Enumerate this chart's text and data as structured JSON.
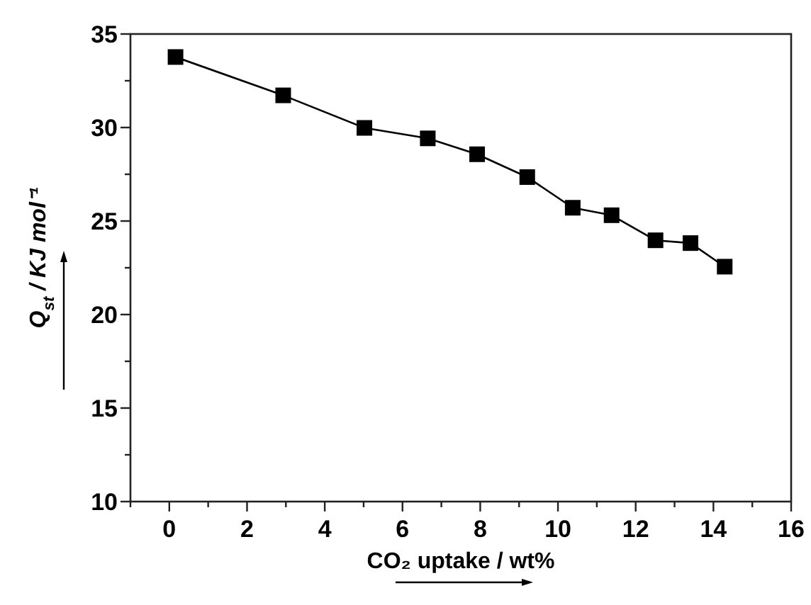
{
  "chart_data": {
    "type": "line",
    "xlabel": "CO₂ uptake / wt%",
    "ylabel": "Q$_{st}$ / KJ mol⁻¹",
    "x": [
      0.16,
      2.93,
      5.02,
      6.65,
      7.92,
      9.21,
      10.38,
      11.38,
      12.51,
      13.41,
      14.29
    ],
    "series": [
      {
        "color": "#000000",
        "values": [
          33.77,
          31.72,
          29.98,
          29.42,
          28.57,
          27.35,
          25.71,
          25.31,
          23.97,
          23.82,
          22.56
        ]
      }
    ],
    "xlim": [
      -1,
      16
    ],
    "xticks": [
      {
        "value": -1,
        "label": null
      },
      0,
      {
        "value": 1,
        "label": null
      },
      2,
      {
        "value": 3,
        "label": null
      },
      4,
      {
        "value": 5,
        "label": null
      },
      6,
      {
        "value": 7,
        "label": null
      },
      8,
      {
        "value": 9,
        "label": null
      },
      10,
      {
        "value": 11,
        "label": null
      },
      12,
      {
        "value": 13,
        "label": null
      },
      14,
      {
        "value": 15,
        "label": null
      },
      16
    ],
    "ylim": [
      10,
      35
    ],
    "yticks": [
      10,
      {
        "value": 12.5,
        "label": null
      },
      15,
      {
        "value": 17.5,
        "label": null
      },
      20,
      {
        "value": 22.5,
        "label": null
      },
      25,
      {
        "value": 27.5,
        "label": null
      },
      30,
      {
        "value": 32.5,
        "label": null
      },
      35
    ],
    "marker": "square",
    "line_style": "solid",
    "grid": false
  }
}
